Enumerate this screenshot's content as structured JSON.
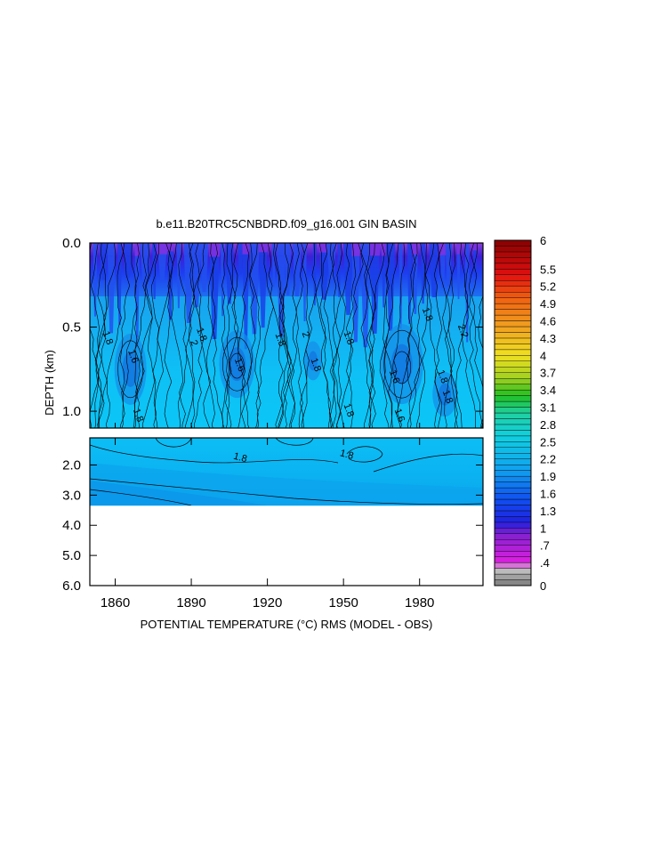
{
  "chart_data": {
    "type": "heatmap",
    "title": "b.e11.B20TRC5CNBDRD.f09_g16.001 GIN BASIN",
    "xlabel": "POTENTIAL TEMPERATURE (°C) RMS (MODEL - OBS)",
    "ylabel": "DEPTH (km)",
    "x_range": [
      1850,
      2005
    ],
    "x_ticks": [
      1860,
      1890,
      1920,
      1950,
      1980
    ],
    "x_tick_labels": [
      "1860",
      "1890",
      "1920",
      "1950",
      "1980"
    ],
    "upper_panel": {
      "y_range": [
        0.0,
        1.1
      ],
      "y_ticks": [
        0.0,
        0.5,
        1.0
      ],
      "y_tick_labels": [
        "0.0",
        "0.5",
        "1.0"
      ]
    },
    "lower_panel": {
      "y_range": [
        1.1,
        6.0
      ],
      "data_bottom": 3.35,
      "y_ticks": [
        2.0,
        3.0,
        4.0,
        5.0,
        6.0
      ],
      "y_tick_labels": [
        "2.0",
        "3.0",
        "4.0",
        "5.0",
        "6.0"
      ]
    },
    "colorbar": {
      "min": 0,
      "max": 6,
      "interval": 0.1,
      "labels": [
        "0",
        ".4",
        ".7",
        "1",
        "1.3",
        "1.6",
        "1.9",
        "2.2",
        "2.5",
        "2.8",
        "3.1",
        "3.4",
        "3.7",
        "4",
        "4.3",
        "4.6",
        "4.9",
        "5.2",
        "5.5",
        "6"
      ],
      "label_values": [
        0,
        0.4,
        0.7,
        1.0,
        1.3,
        1.6,
        1.9,
        2.2,
        2.5,
        2.8,
        3.1,
        3.4,
        3.7,
        4.0,
        4.3,
        4.6,
        4.9,
        5.2,
        5.5,
        6.0
      ]
    },
    "contour_labels": [
      {
        "text": "1.8",
        "x": 1856,
        "y": 0.57
      },
      {
        "text": "1.6",
        "x": 1866,
        "y": 0.68
      },
      {
        "text": "1.8",
        "x": 1868,
        "y": 1.03
      },
      {
        "text": "2",
        "x": 1890,
        "y": 0.6
      },
      {
        "text": "1.8",
        "x": 1893,
        "y": 0.55
      },
      {
        "text": "1.6",
        "x": 1908,
        "y": 0.73
      },
      {
        "text": "1.8",
        "x": 1924,
        "y": 0.58
      },
      {
        "text": "2",
        "x": 1934,
        "y": 0.55
      },
      {
        "text": "1.8",
        "x": 1938,
        "y": 0.73
      },
      {
        "text": "1.8",
        "x": 1951,
        "y": 0.57
      },
      {
        "text": "1.8",
        "x": 1951,
        "y": 1.0
      },
      {
        "text": "1.6",
        "x": 1969,
        "y": 0.8
      },
      {
        "text": "1.6",
        "x": 1971,
        "y": 1.03
      },
      {
        "text": "1.8",
        "x": 1982,
        "y": 0.43
      },
      {
        "text": "1.8",
        "x": 1988,
        "y": 0.8
      },
      {
        "text": "1.8",
        "x": 1990,
        "y": 0.92
      },
      {
        "text": "2.2",
        "x": 1996,
        "y": 0.53
      },
      {
        "text": "1.8",
        "x": 1909,
        "y": 1.85
      },
      {
        "text": "1.8",
        "x": 1951,
        "y": 1.75
      }
    ]
  }
}
